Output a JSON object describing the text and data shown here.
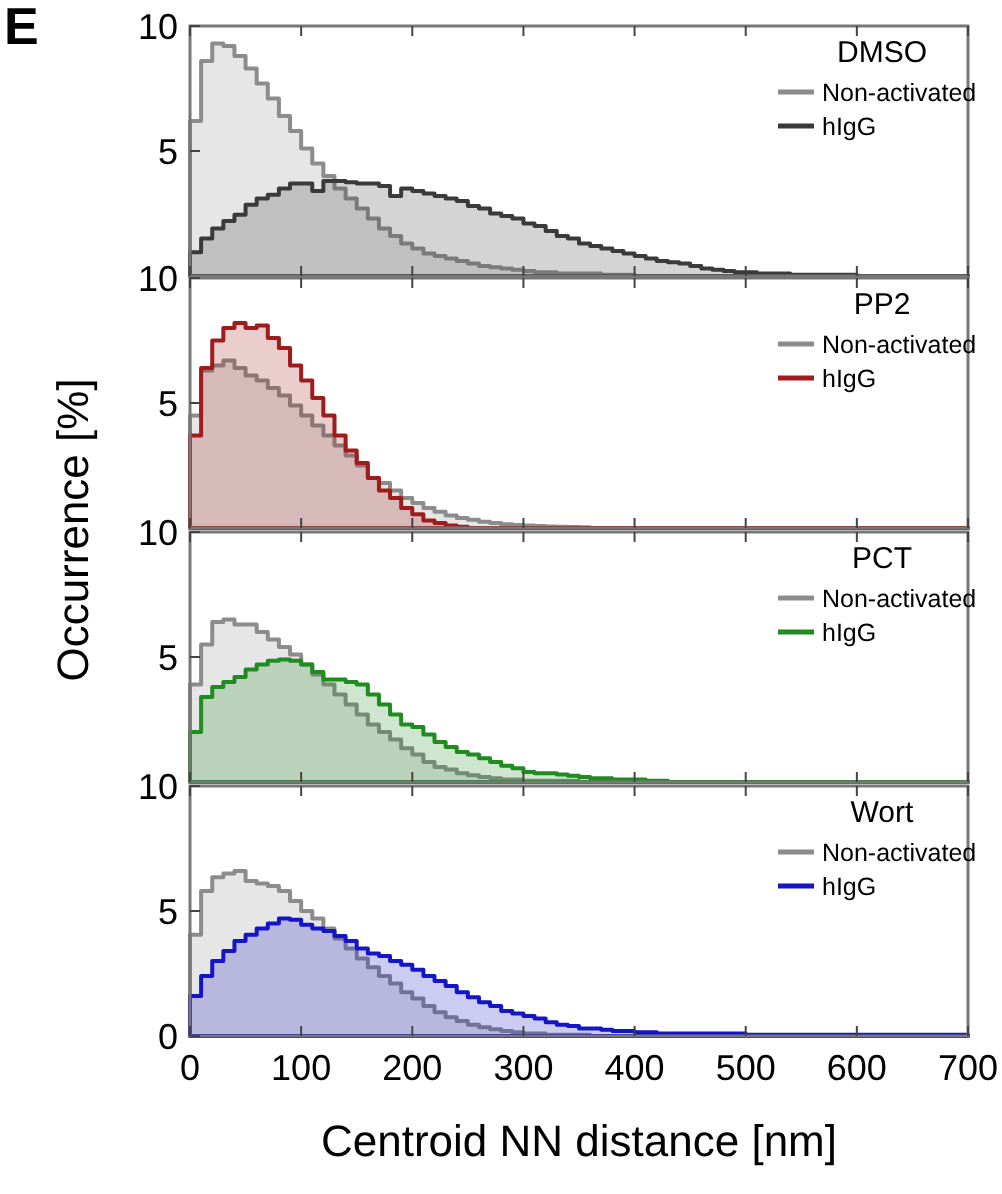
{
  "chart_data": [
    {
      "type": "histogram",
      "ylabel": "Occurrence [%]",
      "annotations": [
        "E"
      ],
      "legend_title": "DMSO",
      "legend": "top right",
      "tick_labels": "y",
      "xlim": [
        0,
        700
      ],
      "ylim": [
        0,
        10
      ],
      "xticks": [
        0,
        100,
        200,
        300,
        400,
        500,
        600,
        700
      ],
      "yticks": [
        5,
        10
      ],
      "bins": [
        0,
        10,
        20,
        30,
        40,
        50,
        60,
        70,
        80,
        90,
        100,
        110,
        120,
        130,
        140,
        150,
        160,
        170,
        180,
        190,
        200,
        210,
        220,
        230,
        240,
        250,
        260,
        270,
        280,
        290,
        300,
        310,
        320,
        330,
        340,
        350,
        360,
        370,
        380,
        390,
        400,
        410,
        420,
        430,
        440,
        450,
        460,
        470,
        480,
        490,
        500,
        510,
        520,
        530,
        540,
        550,
        560,
        570,
        580,
        590,
        600,
        610,
        620,
        630,
        640,
        650,
        660,
        670,
        680,
        690,
        700
      ],
      "series": [
        {
          "name": "Non-activated",
          "color": "#8c8c8c",
          "values": [
            6.2,
            8.6,
            9.3,
            9.2,
            8.8,
            8.3,
            7.7,
            7.1,
            6.4,
            5.8,
            5.1,
            4.5,
            4.0,
            3.5,
            3.1,
            2.7,
            2.3,
            1.9,
            1.6,
            1.3,
            1.1,
            0.9,
            0.8,
            0.7,
            0.6,
            0.5,
            0.4,
            0.35,
            0.3,
            0.25,
            0.2,
            0.15,
            0.15,
            0.1,
            0.1,
            0.1,
            0.1,
            0.05,
            0.05,
            0.05,
            0,
            0,
            0,
            0,
            0,
            0,
            0,
            0,
            0,
            0,
            0,
            0,
            0,
            0,
            0,
            0,
            0,
            0,
            0,
            0,
            0,
            0,
            0,
            0,
            0,
            0,
            0,
            0,
            0,
            0
          ]
        },
        {
          "name": "hIgG",
          "color": "#3a3a3a",
          "values": [
            0.95,
            1.5,
            1.9,
            2.2,
            2.45,
            2.85,
            3.1,
            3.25,
            3.5,
            3.7,
            3.7,
            3.4,
            3.8,
            3.8,
            3.75,
            3.7,
            3.7,
            3.6,
            3.2,
            3.5,
            3.4,
            3.3,
            3.2,
            3.1,
            3.0,
            2.8,
            2.7,
            2.5,
            2.4,
            2.3,
            2.1,
            2.0,
            1.8,
            1.6,
            1.5,
            1.3,
            1.2,
            1.1,
            1.0,
            0.9,
            0.8,
            0.7,
            0.6,
            0.55,
            0.5,
            0.4,
            0.3,
            0.25,
            0.2,
            0.15,
            0.15,
            0.1,
            0.1,
            0.1,
            0.05,
            0.05,
            0.05,
            0.05,
            0.05,
            0.05,
            0,
            0,
            0,
            0,
            0,
            0,
            0,
            0,
            0,
            0
          ]
        }
      ]
    },
    {
      "type": "histogram",
      "legend_title": "PP2",
      "legend": "top right",
      "tick_labels": "y",
      "xlim": [
        0,
        700
      ],
      "ylim": [
        0,
        10
      ],
      "xticks": [
        0,
        100,
        200,
        300,
        400,
        500,
        600,
        700
      ],
      "yticks": [
        5,
        10
      ],
      "bins": [
        0,
        10,
        20,
        30,
        40,
        50,
        60,
        70,
        80,
        90,
        100,
        110,
        120,
        130,
        140,
        150,
        160,
        170,
        180,
        190,
        200,
        210,
        220,
        230,
        240,
        250,
        260,
        270,
        280,
        290,
        300,
        310,
        320,
        330,
        340,
        350,
        360,
        370,
        380,
        390,
        400,
        410,
        420,
        430,
        440,
        450,
        460,
        470,
        480,
        490,
        500,
        510,
        520,
        530,
        540,
        550,
        560,
        570,
        580,
        590,
        600,
        610,
        620,
        630,
        640,
        650,
        660,
        670,
        680,
        690,
        700
      ],
      "series": [
        {
          "name": "Non-activated",
          "color": "#8c8c8c",
          "values": [
            4.5,
            6.3,
            6.5,
            6.7,
            6.4,
            6.1,
            5.9,
            5.6,
            5.3,
            4.9,
            4.5,
            4.1,
            3.7,
            3.3,
            2.9,
            2.5,
            2.0,
            1.8,
            1.5,
            1.2,
            1.0,
            0.8,
            0.65,
            0.5,
            0.4,
            0.33,
            0.25,
            0.2,
            0.15,
            0.12,
            0.1,
            0.08,
            0.06,
            0.05,
            0.04,
            0.03,
            0,
            0,
            0,
            0,
            0,
            0,
            0,
            0,
            0,
            0,
            0,
            0,
            0,
            0,
            0,
            0,
            0,
            0,
            0,
            0,
            0,
            0,
            0,
            0,
            0,
            0,
            0,
            0,
            0,
            0,
            0,
            0,
            0,
            0
          ]
        },
        {
          "name": "hIgG",
          "color": "#a01c1c",
          "values": [
            3.7,
            6.4,
            7.5,
            8.0,
            8.2,
            8.0,
            8.1,
            7.6,
            7.2,
            6.5,
            5.9,
            5.2,
            4.5,
            3.7,
            3.1,
            2.6,
            2.0,
            1.5,
            1.2,
            0.8,
            0.55,
            0.3,
            0.2,
            0.1,
            0.05,
            0,
            0,
            0,
            0,
            0,
            0,
            0,
            0,
            0,
            0,
            0,
            0,
            0,
            0,
            0,
            0,
            0,
            0,
            0,
            0,
            0,
            0,
            0,
            0,
            0,
            0,
            0,
            0,
            0,
            0,
            0,
            0,
            0,
            0,
            0,
            0,
            0,
            0,
            0,
            0,
            0,
            0,
            0,
            0,
            0
          ]
        }
      ]
    },
    {
      "type": "histogram",
      "legend_title": "PCT",
      "legend": "top right",
      "tick_labels": "y",
      "xlim": [
        0,
        700
      ],
      "ylim": [
        0,
        10
      ],
      "xticks": [
        0,
        100,
        200,
        300,
        400,
        500,
        600,
        700
      ],
      "yticks": [
        5,
        10
      ],
      "bins": [
        0,
        10,
        20,
        30,
        40,
        50,
        60,
        70,
        80,
        90,
        100,
        110,
        120,
        130,
        140,
        150,
        160,
        170,
        180,
        190,
        200,
        210,
        220,
        230,
        240,
        250,
        260,
        270,
        280,
        290,
        300,
        310,
        320,
        330,
        340,
        350,
        360,
        370,
        380,
        390,
        400,
        410,
        420,
        430,
        440,
        450,
        460,
        470,
        480,
        490,
        500,
        510,
        520,
        530,
        540,
        550,
        560,
        570,
        580,
        590,
        600,
        610,
        620,
        630,
        640,
        650,
        660,
        670,
        680,
        690,
        700
      ],
      "series": [
        {
          "name": "Non-activated",
          "color": "#8c8c8c",
          "values": [
            3.9,
            5.5,
            6.4,
            6.5,
            6.3,
            6.3,
            6.0,
            5.7,
            5.4,
            5.1,
            4.7,
            4.3,
            3.9,
            3.5,
            3.1,
            2.7,
            2.3,
            2.0,
            1.7,
            1.35,
            1.1,
            0.8,
            0.6,
            0.5,
            0.35,
            0.27,
            0.2,
            0.15,
            0.1,
            0.1,
            0.05,
            0.05,
            0.05,
            0.05,
            0.05,
            0,
            0,
            0,
            0,
            0,
            0,
            0,
            0,
            0,
            0,
            0,
            0,
            0,
            0,
            0,
            0,
            0,
            0,
            0,
            0,
            0,
            0,
            0,
            0,
            0,
            0,
            0,
            0,
            0,
            0,
            0,
            0,
            0,
            0,
            0
          ]
        },
        {
          "name": "hIgG",
          "color": "#1e8c1e",
          "values": [
            2.0,
            3.4,
            3.8,
            4.0,
            4.2,
            4.5,
            4.7,
            4.85,
            4.9,
            4.85,
            4.7,
            4.4,
            4.1,
            4.1,
            4.0,
            3.9,
            3.5,
            3.1,
            2.7,
            2.3,
            2.2,
            1.9,
            1.6,
            1.4,
            1.2,
            1.1,
            0.95,
            0.8,
            0.65,
            0.55,
            0.4,
            0.35,
            0.35,
            0.3,
            0.25,
            0.2,
            0.15,
            0.15,
            0.1,
            0.1,
            0.1,
            0.05,
            0.05,
            0,
            0,
            0,
            0,
            0,
            0,
            0,
            0,
            0,
            0,
            0,
            0,
            0,
            0,
            0,
            0,
            0,
            0,
            0,
            0,
            0,
            0,
            0,
            0,
            0,
            0,
            0
          ]
        }
      ]
    },
    {
      "type": "histogram",
      "xlabel": "Centroid NN distance [nm]",
      "legend_title": "Wort",
      "legend": "top right",
      "xlim": [
        0,
        700
      ],
      "ylim": [
        0,
        10
      ],
      "xticks": [
        0,
        100,
        200,
        300,
        400,
        500,
        600,
        700
      ],
      "yticks": [
        0,
        5,
        10
      ],
      "bins": [
        0,
        10,
        20,
        30,
        40,
        50,
        60,
        70,
        80,
        90,
        100,
        110,
        120,
        130,
        140,
        150,
        160,
        170,
        180,
        190,
        200,
        210,
        220,
        230,
        240,
        250,
        260,
        270,
        280,
        290,
        300,
        310,
        320,
        330,
        340,
        350,
        360,
        370,
        380,
        390,
        400,
        410,
        420,
        430,
        440,
        450,
        460,
        470,
        480,
        490,
        500,
        510,
        520,
        530,
        540,
        550,
        560,
        570,
        580,
        590,
        600,
        610,
        620,
        630,
        640,
        650,
        660,
        670,
        680,
        690,
        700
      ],
      "series": [
        {
          "name": "Non-activated",
          "color": "#8c8c8c",
          "values": [
            4.05,
            5.8,
            6.35,
            6.5,
            6.6,
            6.2,
            6.1,
            6.0,
            5.8,
            5.4,
            5.0,
            4.7,
            4.3,
            3.9,
            3.5,
            3.1,
            2.75,
            2.4,
            2.1,
            1.75,
            1.5,
            1.2,
            0.95,
            0.75,
            0.6,
            0.45,
            0.35,
            0.27,
            0.2,
            0.15,
            0.1,
            0.1,
            0.05,
            0.05,
            0.05,
            0.05,
            0,
            0,
            0,
            0,
            0,
            0,
            0,
            0,
            0,
            0,
            0,
            0,
            0,
            0,
            0,
            0,
            0,
            0,
            0,
            0,
            0,
            0,
            0,
            0,
            0,
            0,
            0,
            0,
            0,
            0,
            0,
            0,
            0,
            0
          ]
        },
        {
          "name": "hIgG",
          "color": "#1515c8",
          "values": [
            1.6,
            2.4,
            3.0,
            3.4,
            3.8,
            4.05,
            4.3,
            4.5,
            4.7,
            4.65,
            4.45,
            4.3,
            4.2,
            4.0,
            3.8,
            3.5,
            3.3,
            3.2,
            3.0,
            2.85,
            2.65,
            2.4,
            2.2,
            2.0,
            1.75,
            1.55,
            1.35,
            1.2,
            1.0,
            0.9,
            0.8,
            0.7,
            0.55,
            0.45,
            0.4,
            0.3,
            0.3,
            0.25,
            0.2,
            0.2,
            0.15,
            0.15,
            0.1,
            0.1,
            0.1,
            0.1,
            0.1,
            0.1,
            0.1,
            0.1,
            0.05,
            0.05,
            0.05,
            0.05,
            0.05,
            0.05,
            0.05,
            0.05,
            0.05,
            0.05,
            0.05,
            0.05,
            0.05,
            0.05,
            0.05,
            0.05,
            0.05,
            0.05,
            0.05,
            0.05
          ]
        }
      ]
    }
  ]
}
